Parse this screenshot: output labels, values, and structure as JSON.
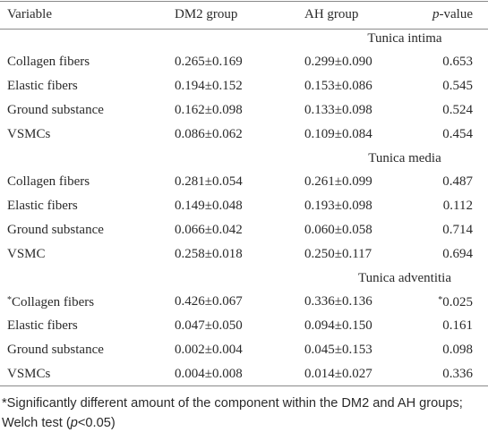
{
  "table": {
    "header": [
      "Variable",
      "DM2 group",
      "AH group",
      {
        "italic": "p",
        "rest": "-value"
      }
    ],
    "sections": [
      {
        "title": "Tunica intima",
        "rows": [
          [
            "Collagen fibers",
            "0.265±0.169",
            "0.299±0.090",
            "0.653"
          ],
          [
            "Elastic fibers",
            "0.194±0.152",
            "0.153±0.086",
            "0.545"
          ],
          [
            "Ground substance",
            "0.162±0.098",
            "0.133±0.098",
            "0.524"
          ],
          [
            "VSMCs",
            "0.086±0.062",
            "0.109±0.084",
            "0.454"
          ]
        ]
      },
      {
        "title": "Tunica media",
        "rows": [
          [
            "Collagen fibers",
            "0.281±0.054",
            "0.261±0.099",
            "0.487"
          ],
          [
            "Elastic fibers",
            "0.149±0.048",
            "0.193±0.098",
            "0.112"
          ],
          [
            "Ground substance",
            "0.066±0.042",
            "0.060±0.058",
            "0.714"
          ],
          [
            "VSMC",
            "0.258±0.018",
            "0.250±0.117",
            "0.694"
          ]
        ]
      },
      {
        "title": "Tunica adventitia",
        "rows": [
          [
            {
              "note": "*",
              "text": "Collagen fibers"
            },
            "0.426±0.067",
            "0.336±0.136",
            {
              "note": "*",
              "text": "0.025"
            }
          ],
          [
            "Elastic fibers",
            "0.047±0.050",
            "0.094±0.150",
            "0.161"
          ],
          [
            "Ground substance",
            "0.002±0.004",
            "0.045±0.153",
            "0.098"
          ],
          [
            "VSMCs",
            "0.004±0.008",
            "0.014±0.027",
            "0.336"
          ]
        ]
      }
    ],
    "footnote": [
      "*Significantly different amount of the component within the DM2 and AH groups; Welch test (",
      "p",
      "<0.05)"
    ]
  }
}
